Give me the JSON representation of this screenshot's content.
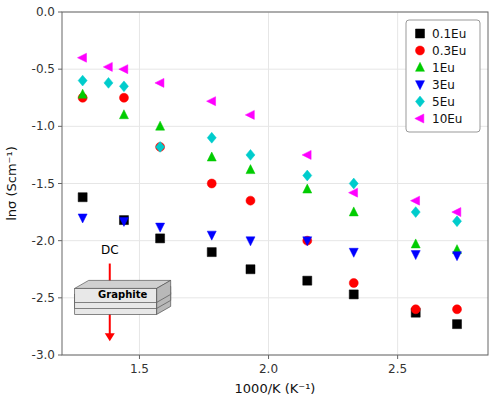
{
  "chart_data": {
    "type": "scatter",
    "xlabel": "1000/K (K⁻¹)",
    "ylabel": "lnσ (Scm⁻¹)",
    "xlim": [
      1.2,
      2.85
    ],
    "ylim": [
      -3.0,
      0.0
    ],
    "xticks": [
      1.5,
      {
        "value": 2.0,
        "label": "2.0"
      },
      2.5
    ],
    "yticks": [
      {
        "value": 0.0,
        "label": "0.0"
      },
      -0.5,
      {
        "value": -1.0,
        "label": "-1.0"
      },
      -1.5,
      {
        "value": -2.0,
        "label": "-2.0"
      },
      -2.5,
      {
        "value": -3.0,
        "label": "-3.0"
      }
    ],
    "legend": "upper right",
    "series": [
      {
        "name": "0.1Eu",
        "color": "#000000",
        "marker": "square",
        "x": [
          1.28,
          1.44,
          1.58,
          1.78,
          1.93,
          2.15,
          2.33,
          2.57,
          2.73
        ],
        "values": [
          -1.62,
          -1.82,
          -1.98,
          -2.1,
          -2.25,
          -2.35,
          -2.47,
          -2.63,
          -2.73
        ]
      },
      {
        "name": "0.3Eu",
        "color": "#ff0000",
        "marker": "circle",
        "x": [
          1.28,
          1.44,
          1.58,
          1.78,
          1.93,
          2.15,
          2.33,
          2.57,
          2.73
        ],
        "values": [
          -0.75,
          -0.75,
          -1.18,
          -1.5,
          -1.65,
          -2.0,
          -2.37,
          -2.6,
          -2.6
        ]
      },
      {
        "name": "1Eu",
        "color": "#00cc00",
        "marker": "triangle-up",
        "x": [
          1.28,
          1.44,
          1.58,
          1.78,
          1.93,
          2.15,
          2.33,
          2.57,
          2.73
        ],
        "values": [
          -0.72,
          -0.9,
          -1.0,
          -1.27,
          -1.38,
          -1.55,
          -1.75,
          -2.03,
          -2.08
        ]
      },
      {
        "name": "3Eu",
        "color": "#0000ff",
        "marker": "triangle-down",
        "x": [
          1.28,
          1.44,
          1.58,
          1.78,
          1.93,
          2.15,
          2.33,
          2.57,
          2.73
        ],
        "values": [
          -1.8,
          -1.83,
          -1.88,
          -1.95,
          -2.0,
          -2.0,
          -2.1,
          -2.12,
          -2.13
        ]
      },
      {
        "name": "5Eu",
        "color": "#00cccc",
        "marker": "diamond",
        "x": [
          1.28,
          1.38,
          1.44,
          1.58,
          1.78,
          1.93,
          2.15,
          2.33,
          2.57,
          2.73
        ],
        "values": [
          -0.6,
          -0.62,
          -0.65,
          -1.18,
          -1.1,
          -1.25,
          -1.43,
          -1.5,
          -1.75,
          -1.83
        ]
      },
      {
        "name": "10Eu",
        "color": "#ff00ff",
        "marker": "triangle-left",
        "x": [
          1.28,
          1.38,
          1.44,
          1.58,
          1.78,
          1.93,
          2.15,
          2.33,
          2.57,
          2.73
        ],
        "values": [
          -0.4,
          -0.48,
          -0.5,
          -0.62,
          -0.78,
          -0.9,
          -1.25,
          -1.58,
          -1.65,
          -1.75
        ]
      }
    ],
    "annotations": [
      {
        "text": "DC",
        "x": 1.385,
        "y": -2.08,
        "arrow": {
          "x": 1.385,
          "from": -2.2,
          "to": -2.88,
          "color": "red"
        }
      },
      {
        "text": "Graphite",
        "x": 1.435,
        "y": -2.47
      }
    ]
  }
}
